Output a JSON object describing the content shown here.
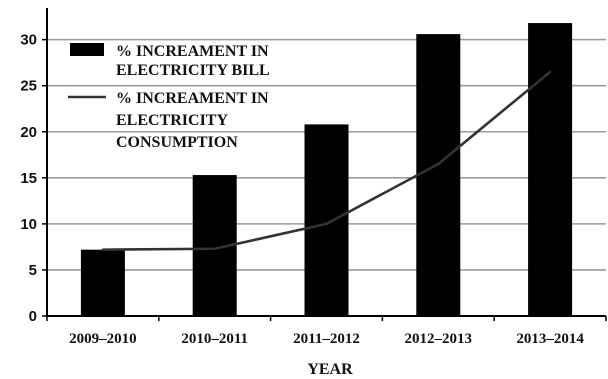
{
  "chart_data": {
    "type": "bar",
    "categories": [
      "2009–2010",
      "2010–2011",
      "2011–2012",
      "2012–2013",
      "2013–2014"
    ],
    "series": [
      {
        "type": "bar",
        "name": "% INCREAMENT IN ELECTRICITY BILL",
        "legend_lines": [
          "% INCREAMENT IN",
          "ELECTRICITY BILL"
        ],
        "values": [
          7.2,
          15.3,
          20.8,
          30.6,
          31.8
        ]
      },
      {
        "type": "line",
        "name": "% INCREAMENT IN ELECTRICITY CONSUMPTION",
        "legend_lines": [
          "% INCREAMENT IN",
          "ELECTRICITY",
          "CONSUMPTION"
        ],
        "values": [
          7.2,
          7.3,
          10.0,
          16.5,
          26.5
        ]
      }
    ],
    "xlabel": "YEAR",
    "ylabel": "",
    "ylim": [
      0,
      33
    ],
    "yticks": [
      0,
      5,
      10,
      15,
      20,
      25,
      30
    ],
    "grid": true,
    "legend_position": "top-left",
    "colors": {
      "bar": "#000000",
      "line": "#333333",
      "grid": "#9a9a9a",
      "axis": "#000000"
    }
  }
}
